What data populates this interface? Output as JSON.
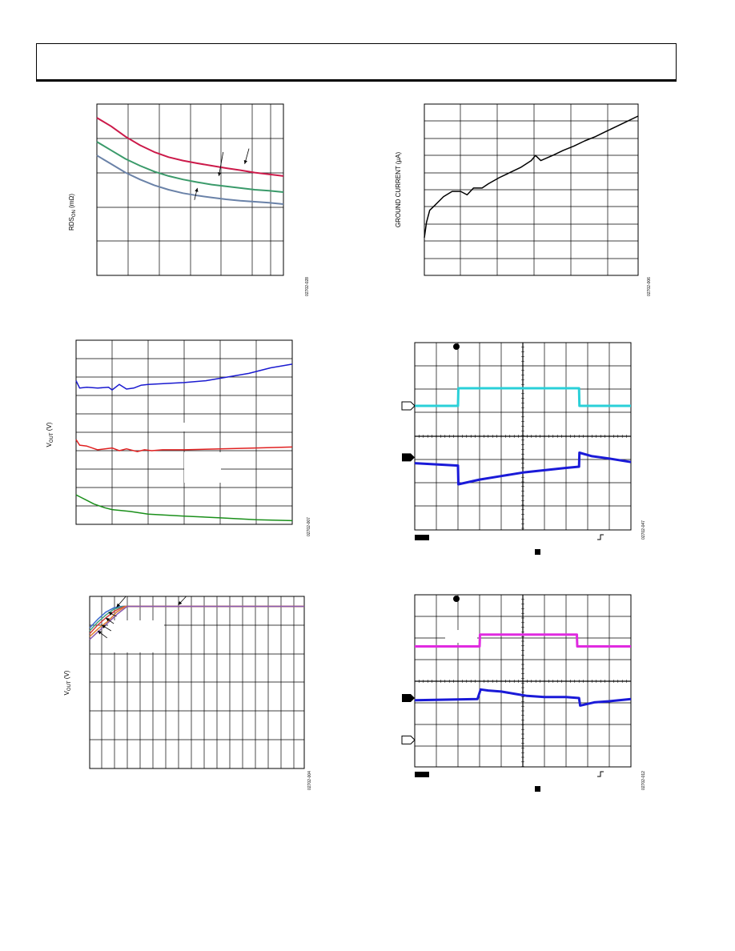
{
  "page": {
    "header_text": ""
  },
  "chart_data": [
    {
      "id": "rds",
      "type": "line",
      "ylabel_main": "RDS",
      "ylabel_sub": "ON",
      "ylabel_unit": " (mΩ)",
      "figure_id": "02702-028",
      "xlim": [
        0,
        6.5
      ],
      "ylim": [
        0,
        5
      ],
      "series": [
        {
          "color": "#cc1a4a",
          "x": [
            0,
            0.5,
            1,
            1.5,
            2,
            2.5,
            3,
            3.5,
            4,
            4.5,
            5,
            5.5,
            6,
            6.5
          ],
          "y": [
            4.6,
            4.35,
            4.05,
            3.8,
            3.6,
            3.45,
            3.35,
            3.27,
            3.2,
            3.13,
            3.07,
            3.0,
            2.95,
            2.9
          ]
        },
        {
          "color": "#3a9a6a",
          "x": [
            0,
            0.5,
            1,
            1.5,
            2,
            2.5,
            3,
            3.5,
            4,
            4.5,
            5,
            5.5,
            6,
            6.5
          ],
          "y": [
            3.9,
            3.65,
            3.4,
            3.2,
            3.03,
            2.9,
            2.8,
            2.72,
            2.65,
            2.6,
            2.55,
            2.5,
            2.47,
            2.43
          ]
        },
        {
          "color": "#6a82a8",
          "x": [
            0,
            0.5,
            1,
            1.5,
            2,
            2.5,
            3,
            3.5,
            4,
            4.5,
            5,
            5.5,
            6,
            6.5
          ],
          "y": [
            3.5,
            3.25,
            3.0,
            2.8,
            2.63,
            2.5,
            2.4,
            2.33,
            2.27,
            2.22,
            2.18,
            2.15,
            2.12,
            2.08
          ]
        }
      ],
      "arrows": [
        {
          "x1": 5.3,
          "y1": 3.7,
          "x2": 5.15,
          "y2": 3.25
        },
        {
          "x1": 4.4,
          "y1": 3.6,
          "x2": 4.25,
          "y2": 2.9
        },
        {
          "x1": 3.4,
          "y1": 2.2,
          "x2": 3.5,
          "y2": 2.55
        }
      ]
    },
    {
      "id": "ground_current",
      "type": "line",
      "ylabel": "GROUND CURRENT (µA)",
      "figure_id": "02702-006",
      "xlim": [
        0,
        10
      ],
      "ylim": [
        0,
        10
      ],
      "series": [
        {
          "color": "#000000",
          "x": [
            0,
            0.1,
            0.25,
            0.5,
            0.9,
            1.3,
            1.7,
            2.0,
            2.3,
            2.7,
            3.0,
            3.5,
            4.0,
            4.5,
            5.0,
            5.2,
            5.45,
            6.0,
            6.5,
            7.0,
            7.5,
            8.0,
            8.5,
            9.0,
            9.5,
            10.0
          ],
          "y": [
            2.2,
            3.1,
            3.8,
            4.1,
            4.6,
            4.9,
            4.9,
            4.7,
            5.1,
            5.1,
            5.35,
            5.7,
            6.0,
            6.3,
            6.7,
            7.0,
            6.7,
            7.0,
            7.3,
            7.55,
            7.85,
            8.1,
            8.4,
            8.7,
            9.0,
            9.3
          ]
        }
      ]
    },
    {
      "id": "vout_steps",
      "type": "line",
      "ylabel_main": "V",
      "ylabel_sub": "OUT",
      "ylabel_unit": " (V)",
      "figure_id": "02702-007",
      "xlim": [
        0,
        6
      ],
      "ylim": [
        0,
        10
      ],
      "series": [
        {
          "color": "#1a1ad0",
          "x": [
            0,
            0.1,
            0.3,
            0.6,
            0.9,
            1.0,
            1.2,
            1.4,
            1.6,
            1.8,
            2.0,
            3.0,
            3.6,
            4.2,
            4.8,
            5.4,
            6.0
          ],
          "y": [
            7.8,
            7.4,
            7.45,
            7.4,
            7.45,
            7.3,
            7.6,
            7.35,
            7.4,
            7.55,
            7.6,
            7.7,
            7.8,
            8.0,
            8.2,
            8.5,
            8.7
          ]
        },
        {
          "color": "#e02020",
          "x": [
            0,
            0.1,
            0.3,
            0.6,
            1.0,
            1.2,
            1.4,
            1.7,
            1.9,
            2.1,
            2.4,
            3.0,
            4.0,
            5.0,
            6.0
          ],
          "y": [
            4.6,
            4.3,
            4.25,
            4.05,
            4.15,
            4.0,
            4.1,
            3.95,
            4.05,
            4.0,
            4.05,
            4.05,
            4.1,
            4.15,
            4.2
          ]
        },
        {
          "color": "#1a8f1a",
          "x": [
            0,
            0.1,
            0.3,
            0.5,
            0.8,
            1.0,
            1.5,
            2.0,
            3.0,
            4.0,
            5.0,
            6.0
          ],
          "y": [
            1.6,
            1.5,
            1.3,
            1.1,
            0.9,
            0.8,
            0.7,
            0.55,
            0.45,
            0.35,
            0.25,
            0.2
          ]
        }
      ]
    },
    {
      "id": "scope_1",
      "type": "line",
      "figure_id": "02702-047",
      "xlim": [
        0,
        10
      ],
      "ylim": [
        0,
        8
      ],
      "series": [
        {
          "color": "#2ad0d8",
          "x": [
            0,
            2,
            2.02,
            7.6,
            7.62,
            10
          ],
          "y": [
            5.3,
            5.3,
            6.05,
            6.05,
            5.3,
            5.3
          ]
        },
        {
          "color": "#1a1ad8",
          "x": [
            0,
            2,
            2.02,
            3,
            4,
            5,
            6,
            7,
            7.6,
            7.62,
            8.2,
            9,
            10
          ],
          "y": [
            2.85,
            2.75,
            1.95,
            2.15,
            2.3,
            2.45,
            2.55,
            2.65,
            2.7,
            3.3,
            3.15,
            3.05,
            2.9
          ]
        }
      ],
      "markers": {
        "ch1": 5.3,
        "ch2": 3.1
      }
    },
    {
      "id": "vout_load",
      "type": "line",
      "ylabel_main": "V",
      "ylabel_sub": "OUT",
      "ylabel_unit": " (V)",
      "figure_id": "02702-004",
      "xlim": [
        0,
        8
      ],
      "ylim": [
        0,
        6
      ],
      "series": [
        {
          "color": "#3a6ad0",
          "x": [
            0,
            0.3,
            0.6,
            0.9,
            1.2,
            8
          ],
          "y": [
            4.9,
            5.2,
            5.45,
            5.6,
            5.65,
            5.65
          ]
        },
        {
          "color": "#40a080",
          "x": [
            0,
            0.3,
            0.6,
            0.9,
            1.25,
            8
          ],
          "y": [
            4.8,
            5.1,
            5.35,
            5.55,
            5.65,
            5.65
          ]
        },
        {
          "color": "#d04040",
          "x": [
            0,
            0.3,
            0.6,
            0.95,
            1.3,
            8
          ],
          "y": [
            4.7,
            5.0,
            5.25,
            5.5,
            5.65,
            5.65
          ]
        },
        {
          "color": "#e08030",
          "x": [
            0,
            0.35,
            0.7,
            1.0,
            1.35,
            8
          ],
          "y": [
            4.6,
            4.9,
            5.15,
            5.45,
            5.65,
            5.65
          ]
        },
        {
          "color": "#8a5ab0",
          "x": [
            0,
            0.35,
            0.7,
            1.05,
            1.4,
            8
          ],
          "y": [
            4.5,
            4.8,
            5.1,
            5.4,
            5.65,
            5.65
          ]
        }
      ],
      "arrows": [
        {
          "x1": 1.35,
          "y1": 6.0,
          "x2": 1.0,
          "y2": 5.62
        },
        {
          "x1": 3.6,
          "y1": 6.0,
          "x2": 3.3,
          "y2": 5.7
        },
        {
          "x1": 1.0,
          "y1": 5.3,
          "x2": 0.7,
          "y2": 5.45
        },
        {
          "x1": 0.9,
          "y1": 5.05,
          "x2": 0.6,
          "y2": 5.25
        },
        {
          "x1": 0.8,
          "y1": 4.8,
          "x2": 0.45,
          "y2": 5.0
        },
        {
          "x1": 0.65,
          "y1": 4.55,
          "x2": 0.3,
          "y2": 4.8
        }
      ]
    },
    {
      "id": "scope_2",
      "type": "line",
      "figure_id": "02702-012",
      "xlim": [
        0,
        10
      ],
      "ylim": [
        0,
        8
      ],
      "series": [
        {
          "color": "#e02ae0",
          "x": [
            0,
            3,
            3.02,
            7.5,
            7.52,
            10
          ],
          "y": [
            5.6,
            5.6,
            6.15,
            6.15,
            5.6,
            5.6
          ]
        },
        {
          "color": "#1a1ad8",
          "x": [
            0,
            2.9,
            3.05,
            3.4,
            4.0,
            4.6,
            5.2,
            6.0,
            7.0,
            7.6,
            7.65,
            8.3,
            9,
            10
          ],
          "y": [
            3.1,
            3.15,
            3.6,
            3.55,
            3.5,
            3.4,
            3.3,
            3.25,
            3.25,
            3.2,
            2.85,
            3.0,
            3.05,
            3.15
          ]
        }
      ],
      "markers": {
        "ch1": 1.25,
        "ch2": 3.2
      }
    }
  ]
}
